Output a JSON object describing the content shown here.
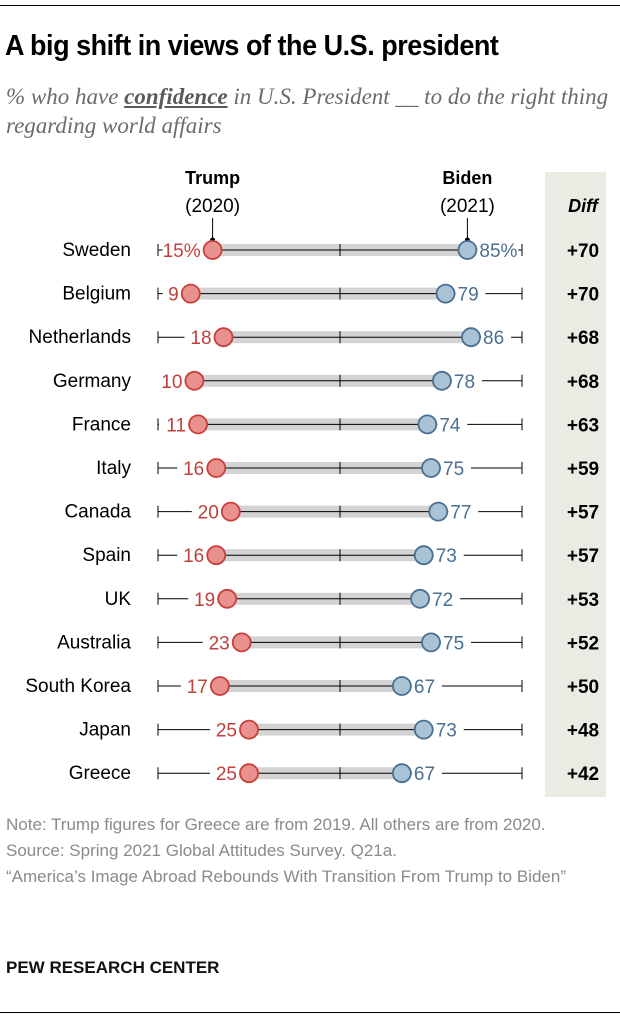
{
  "title": "A big shift in views of the U.S. president",
  "subtitle": {
    "pre": "% who have ",
    "keyword": "confidence",
    "post": " in U.S. President __ to do the right thing regarding world affairs"
  },
  "chart_data": {
    "type": "dumbbell",
    "title": "A big shift in views of the U.S. president",
    "xlim": [
      0,
      100
    ],
    "series": [
      {
        "name": "Trump",
        "sub": "(2020)",
        "color": "#e8918f",
        "stroke": "#c8403c",
        "text_color": "#c0403c"
      },
      {
        "name": "Biden",
        "sub": "(2021)",
        "color": "#a9c3d5",
        "stroke": "#4a6f93",
        "text_color": "#4a6f93"
      }
    ],
    "diff_header": "Diff",
    "rows": [
      {
        "country": "Sweden",
        "trump": 15,
        "biden": 85,
        "trump_label": "15%",
        "biden_label": "85%",
        "diff": "+70"
      },
      {
        "country": "Belgium",
        "trump": 9,
        "biden": 79,
        "trump_label": "9",
        "biden_label": "79",
        "diff": "+70"
      },
      {
        "country": "Netherlands",
        "trump": 18,
        "biden": 86,
        "trump_label": "18",
        "biden_label": "86",
        "diff": "+68"
      },
      {
        "country": "Germany",
        "trump": 10,
        "biden": 78,
        "trump_label": "10",
        "biden_label": "78",
        "diff": "+68"
      },
      {
        "country": "France",
        "trump": 11,
        "biden": 74,
        "trump_label": "11",
        "biden_label": "74",
        "diff": "+63"
      },
      {
        "country": "Italy",
        "trump": 16,
        "biden": 75,
        "trump_label": "16",
        "biden_label": "75",
        "diff": "+59"
      },
      {
        "country": "Canada",
        "trump": 20,
        "biden": 77,
        "trump_label": "20",
        "biden_label": "77",
        "diff": "+57"
      },
      {
        "country": "Spain",
        "trump": 16,
        "biden": 73,
        "trump_label": "16",
        "biden_label": "73",
        "diff": "+57"
      },
      {
        "country": "UK",
        "trump": 19,
        "biden": 72,
        "trump_label": "19",
        "biden_label": "72",
        "diff": "+53"
      },
      {
        "country": "Australia",
        "trump": 23,
        "biden": 75,
        "trump_label": "23",
        "biden_label": "75",
        "diff": "+52"
      },
      {
        "country": "South Korea",
        "trump": 17,
        "biden": 67,
        "trump_label": "17",
        "biden_label": "67",
        "diff": "+50"
      },
      {
        "country": "Japan",
        "trump": 25,
        "biden": 73,
        "trump_label": "25",
        "biden_label": "73",
        "diff": "+48"
      },
      {
        "country": "Greece",
        "trump": 25,
        "biden": 67,
        "trump_label": "25",
        "biden_label": "67",
        "diff": "+42"
      }
    ]
  },
  "notes": {
    "note": "Note: Trump figures for Greece are from 2019. All others are from 2020.",
    "source": "Source: Spring 2021 Global Attitudes Survey. Q21a.",
    "report": "“America’s Image Abroad Rebounds With Transition From Trump to Biden”"
  },
  "brand": "PEW RESEARCH CENTER"
}
